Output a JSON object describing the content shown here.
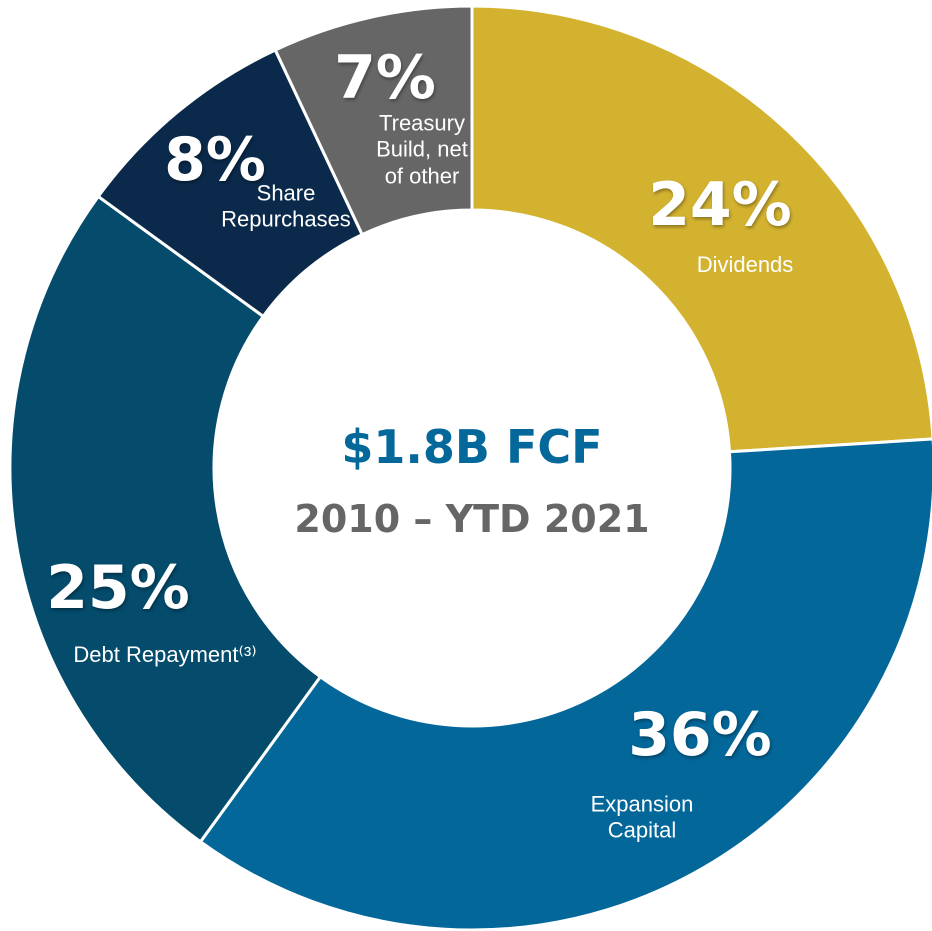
{
  "chart_data": {
    "type": "donut",
    "title": "$1.8B FCF",
    "subtitle": "2010 – YTD 2021",
    "categories": [
      "Dividends",
      "Expansion Capital",
      "Debt Repayment⁽³⁾",
      "Share Repurchases",
      "Treasury Build, net of other"
    ],
    "values": [
      24,
      36,
      25,
      8,
      7
    ],
    "value_labels": [
      "24%",
      "36%",
      "25%",
      "8%",
      "7%"
    ],
    "colors": [
      "#d3b230",
      "#03679a",
      "#044b6c",
      "#0b2a4b",
      "#666666"
    ]
  }
}
